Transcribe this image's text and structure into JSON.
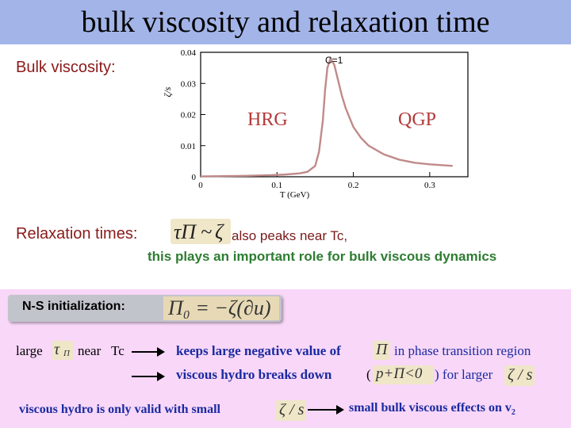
{
  "title": "bulk viscosity and relaxation time",
  "bulk_label": "Bulk viscosity:",
  "chart_data": {
    "type": "line",
    "title": "",
    "xlabel": "T (GeV)",
    "ylabel": "ζ/s",
    "xlim": [
      0,
      0.35
    ],
    "ylim": [
      0,
      0.04
    ],
    "x_ticks": [
      "0",
      "0.1",
      "0.2",
      "0.3"
    ],
    "y_ticks": [
      "0",
      "0.01",
      "0.02",
      "0.03",
      "0.04"
    ],
    "annotations": [
      "C=1",
      "HRG",
      "QGP"
    ],
    "series": [
      {
        "x": [
          0,
          0.03,
          0.06,
          0.09,
          0.11,
          0.13,
          0.14,
          0.15,
          0.155,
          0.16,
          0.163,
          0.166,
          0.17,
          0.175,
          0.18,
          0.185,
          0.19,
          0.2,
          0.21,
          0.22,
          0.24,
          0.26,
          0.28,
          0.3,
          0.33
        ],
        "y": [
          0.0001,
          0.0002,
          0.0003,
          0.0005,
          0.0007,
          0.0011,
          0.0016,
          0.0035,
          0.008,
          0.018,
          0.028,
          0.035,
          0.038,
          0.036,
          0.031,
          0.026,
          0.022,
          0.016,
          0.0125,
          0.01,
          0.0072,
          0.0055,
          0.0045,
          0.004,
          0.0035
        ]
      }
    ],
    "line_color": "#c08a8a"
  },
  "relax_label": "Relaxation times:",
  "relax_formula": {
    "lhs": "τΠ",
    "rel": "~",
    "rhs": "ζ"
  },
  "relax_peaks": "also peaks near Tc,",
  "relax_role": "this plays an important role for bulk viscous dynamics",
  "ns_label": "N-S initialization:",
  "ns_formula": {
    "text": "Π₀ = −ζ(∂u)"
  },
  "row1": {
    "large": "large",
    "tau": "τ",
    "tau_sub": "Π",
    "near": "near",
    "tc": "Tc",
    "keeps": "keeps large negative value of",
    "pi": "Π",
    "in_phase": "in phase transition region"
  },
  "row2": {
    "breaks": "viscous hydro breaks down",
    "open_paren": "(",
    "condition": "p+Π<0",
    "close": ") for larger",
    "zeta_s": "ζ / s"
  },
  "bottom": {
    "left": "viscous hydro is only valid  with small",
    "left_formula": "ζ / s",
    "right": "small bulk viscous effects on v",
    "right_sub": "2"
  }
}
